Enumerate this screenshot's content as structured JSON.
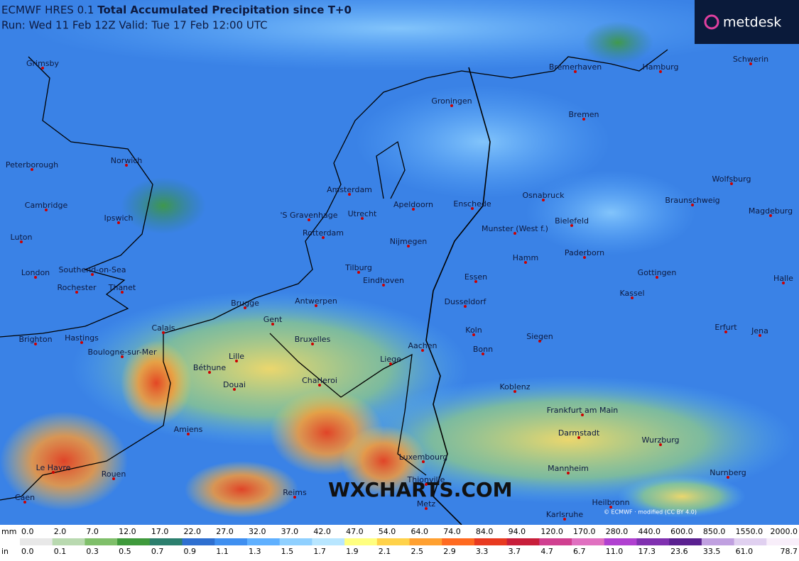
{
  "header": {
    "model": "ECMWF HRES 0.1",
    "title": "Total Accumulated Precipitation since T+0",
    "run": "Run: Wed 11 Feb 12Z Valid: Tue 17 Feb 12:00 UTC"
  },
  "logo": "metdesk",
  "watermark": "WXCHARTS.COM",
  "credit": "© ECMWF · modified (CC BY 4.0)",
  "cities": [
    "Grimsby",
    "Peterborough",
    "Norwich",
    "Cambridge",
    "Ipswich",
    "Luton",
    "London",
    "Southend-on-Sea",
    "Rochester",
    "Thanet",
    "Brighton",
    "Hastings",
    "Calais",
    "Boulogne-sur-Mer",
    "Lille",
    "Béthune",
    "Douai",
    "Amiens",
    "Le Havre",
    "Rouen",
    "Caen",
    "Reims",
    "Metz",
    "Thionville",
    "Luxembourg",
    "Charleroi",
    "Liege",
    "Aachen",
    "Bruxelles",
    "Gent",
    "Brugge",
    "Antwerpen",
    "Eindhoven",
    "Tilburg",
    "Nijmegen",
    "Rotterdam",
    "'S Gravenhage",
    "Amsterdam",
    "Utrecht",
    "Apeldoorn",
    "Enschede",
    "Groningen",
    "Bremerhaven",
    "Hamburg",
    "Bremen",
    "Schwerin",
    "Osnabruck",
    "Munster (West f.)",
    "Bielefeld",
    "Hamm",
    "Paderborn",
    "Essen",
    "Dusseldorf",
    "Koln",
    "Bonn",
    "Siegen",
    "Koblenz",
    "Frankfurt am Main",
    "Darmstadt",
    "Mannheim",
    "Heilbronn",
    "Karlsruhe",
    "Wurzburg",
    "Nurnberg",
    "Kassel",
    "Gottingen",
    "Wolfsburg",
    "Braunschweig",
    "Magdeburg",
    "Halle",
    "Erfurt",
    "Jena"
  ],
  "legend": {
    "mm_unit": "mm",
    "mm_labels": [
      "0.0",
      "2.0",
      "7.0",
      "12.0",
      "17.0",
      "22.0",
      "27.0",
      "32.0",
      "37.0",
      "42.0",
      "47.0",
      "54.0",
      "64.0",
      "74.0",
      "84.0",
      "94.0",
      "120.0",
      "170.0",
      "280.0",
      "440.0",
      "600.0",
      "850.0",
      "1550.0",
      "2000.0"
    ],
    "in_unit": "in",
    "in_labels": [
      "0.0",
      "0.1",
      "0.3",
      "0.5",
      "0.7",
      "0.9",
      "1.1",
      "1.3",
      "1.5",
      "1.7",
      "1.9",
      "2.1",
      "2.5",
      "2.9",
      "3.3",
      "3.7",
      "4.7",
      "6.7",
      "11.0",
      "17.3",
      "23.6",
      "33.5",
      "61.0",
      "78.7"
    ],
    "colors": [
      "#e8e8e8",
      "#b9d9b0",
      "#7fbf6a",
      "#3f9a3c",
      "#2c7f6e",
      "#2e6fd0",
      "#3f8ff0",
      "#5fb0ff",
      "#8fd0ff",
      "#b8e6ff",
      "#ffff80",
      "#ffd24a",
      "#ffa030",
      "#ff6a20",
      "#e83a20",
      "#c81e3a",
      "#d04090",
      "#e070c0",
      "#b040d0",
      "#8030b0",
      "#5a2090",
      "#c0a0e0",
      "#e0d0f0",
      "#f8eefa"
    ]
  }
}
